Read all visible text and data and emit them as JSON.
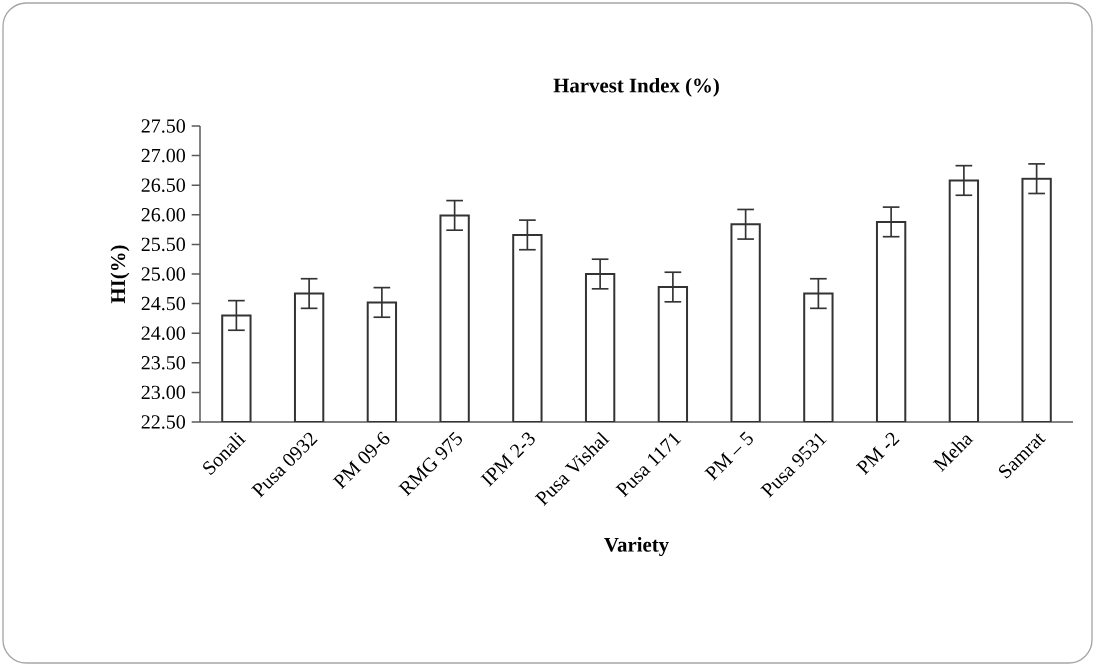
{
  "chart_data": {
    "type": "bar",
    "title": "Harvest Index (%)",
    "xlabel": "Variety",
    "ylabel": "HI(%)",
    "categories": [
      "Sonali",
      "Pusa 0932",
      "PM 09-6",
      "RMG 975",
      "IPM 2-3",
      "Pusa Vishal",
      "Pusa 1171",
      "PM – 5",
      "Pusa 9531",
      "PM -2",
      "Meha",
      "Samrat"
    ],
    "values": [
      24.3,
      24.67,
      24.52,
      25.99,
      25.66,
      25.0,
      24.78,
      25.84,
      24.67,
      25.88,
      26.58,
      26.61
    ],
    "errors": [
      0.25,
      0.25,
      0.25,
      0.25,
      0.25,
      0.25,
      0.25,
      0.25,
      0.25,
      0.25,
      0.25,
      0.25
    ],
    "color": "#ffffff",
    "ylim": [
      22.5,
      27.5
    ],
    "yticks": [
      {
        "value": 22.5,
        "label": "22.50"
      },
      {
        "value": 23,
        "label": "23.00"
      },
      {
        "value": 23.5,
        "label": "23.50"
      },
      {
        "value": 24,
        "label": "24.00"
      },
      {
        "value": 24.5,
        "label": "24.50"
      },
      {
        "value": 25,
        "label": "25.00"
      },
      {
        "value": 25.5,
        "label": "25.50"
      },
      {
        "value": 26,
        "label": "26.00"
      },
      {
        "value": 26.5,
        "label": "26.50"
      },
      {
        "value": 27,
        "label": "27.00"
      },
      {
        "value": 27.5,
        "label": "27.50"
      }
    ]
  }
}
